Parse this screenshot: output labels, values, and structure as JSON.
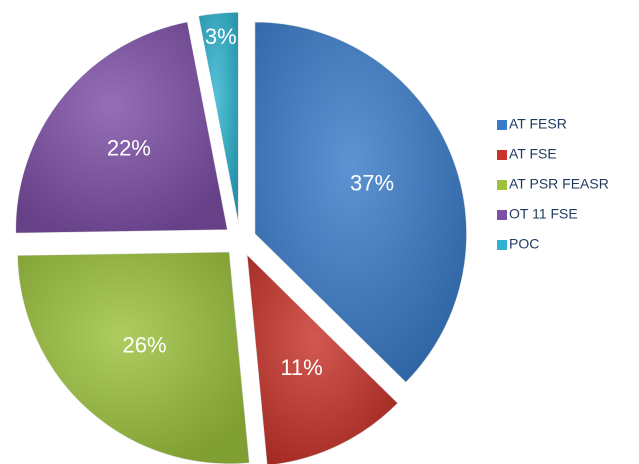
{
  "chart_data": {
    "type": "pie",
    "categories": [
      "AT FESR",
      "AT FSE",
      "AT PSR FEASR",
      "OT 11 FSE",
      "POC"
    ],
    "values": [
      37,
      11,
      26,
      22,
      3
    ],
    "value_labels": [
      "37%",
      "11%",
      "26%",
      "22%",
      "3%"
    ],
    "colors": [
      "#3a7cc9",
      "#c8342c",
      "#9cc23e",
      "#7d4fa6",
      "#2fb3cf"
    ],
    "legend": "right"
  }
}
